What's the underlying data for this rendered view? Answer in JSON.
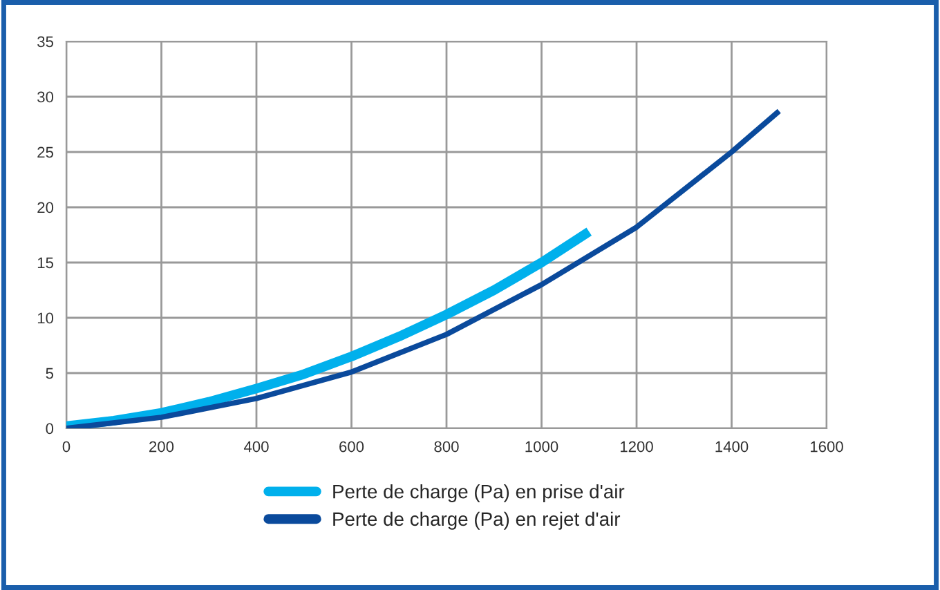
{
  "chart_data": {
    "type": "line",
    "series": [
      {
        "name": "Perte de charge (Pa) en prise d'air",
        "color": "#00b0ec",
        "x": [
          0,
          100,
          200,
          300,
          400,
          500,
          600,
          700,
          800,
          900,
          1000,
          1100
        ],
        "values": [
          0.2,
          0.7,
          1.4,
          2.4,
          3.6,
          4.9,
          6.5,
          8.3,
          10.3,
          12.5,
          15.0,
          17.8
        ]
      },
      {
        "name": "Perte de charge (Pa) en rejet d'air",
        "color": "#0a4a9c",
        "x": [
          0,
          200,
          400,
          600,
          800,
          1000,
          1200,
          1400,
          1500
        ],
        "values": [
          0,
          1.0,
          2.7,
          5.1,
          8.5,
          13.0,
          18.2,
          25.0,
          28.7
        ]
      }
    ],
    "xlim": [
      0,
      1600
    ],
    "xticks": [
      0,
      200,
      400,
      600,
      800,
      1000,
      1200,
      1400,
      1600
    ],
    "ylim": [
      0,
      35
    ],
    "yticks": [
      0,
      5,
      10,
      15,
      20,
      25,
      30,
      35
    ],
    "grid": true,
    "legend": "bottom",
    "marker": "none",
    "line_style": "solid"
  }
}
